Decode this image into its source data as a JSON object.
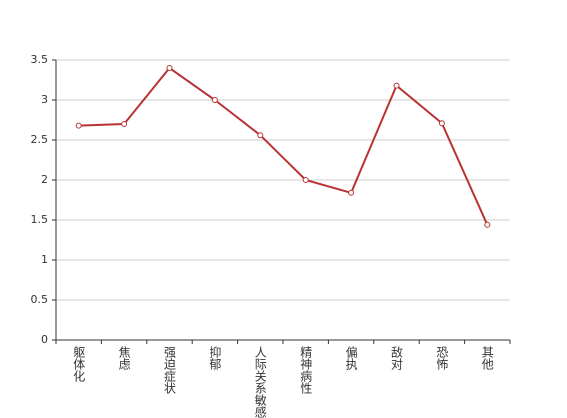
{
  "chart_data": {
    "type": "line",
    "categories": [
      "躯体化",
      "焦虑",
      "强迫症状",
      "抑郁",
      "人际关系敏感",
      "精神病性",
      "偏执",
      "敌对",
      "恐怖",
      "其他"
    ],
    "series": [
      {
        "color": "#b83333",
        "values": [
          2.68,
          2.7,
          3.4,
          3.0,
          2.56,
          2.0,
          1.84,
          3.18,
          2.71,
          1.44
        ]
      }
    ],
    "ylim": [
      0,
      3.5
    ],
    "yticks": [
      0,
      0.5,
      1,
      1.5,
      2,
      2.5,
      3,
      3.5
    ],
    "grid": true
  }
}
